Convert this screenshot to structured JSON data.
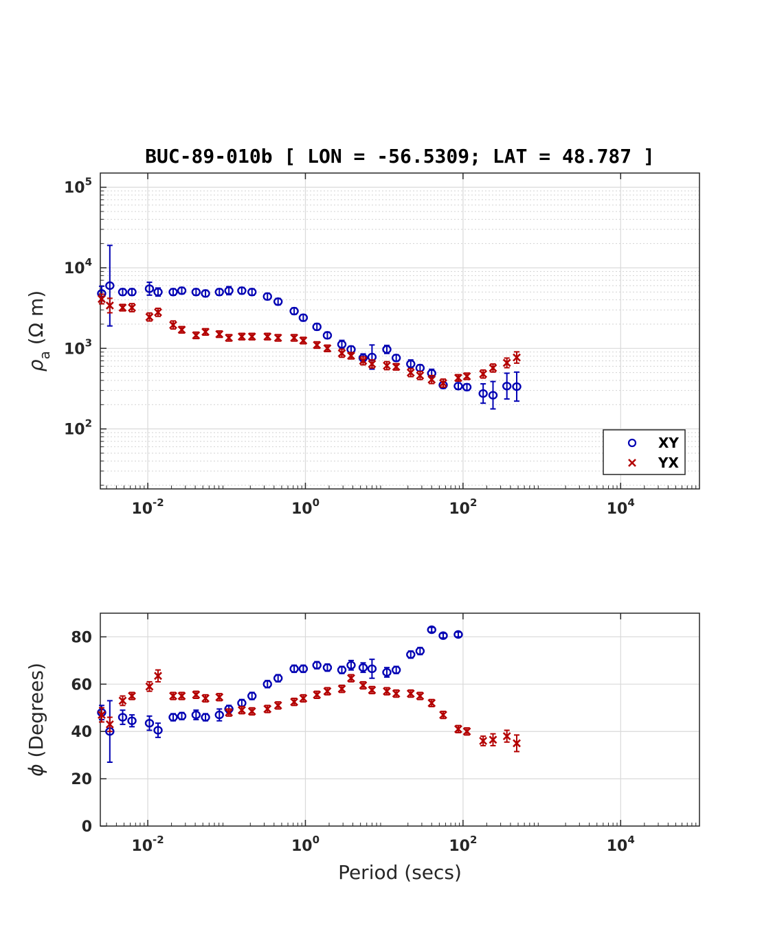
{
  "title": "BUC-89-010b [ LON = -56.5309; LAT = 48.787 ]",
  "colors": {
    "XY": "#0000b3",
    "YX": "#b30000"
  },
  "chart_data": [
    {
      "type": "scatter",
      "name": "apparent-resistivity",
      "xscale": "log",
      "yscale": "log",
      "xlim": [
        0.0025,
        100000
      ],
      "ylim": [
        18,
        150000
      ],
      "xticks": [
        {
          "base": "10",
          "exp": "-2",
          "v": 0.01
        },
        {
          "base": "10",
          "exp": "0",
          "v": 1
        },
        {
          "base": "10",
          "exp": "2",
          "v": 100
        },
        {
          "base": "10",
          "exp": "4",
          "v": 10000
        }
      ],
      "yticks": [
        {
          "base": "10",
          "exp": "2",
          "v": 100
        },
        {
          "base": "10",
          "exp": "3",
          "v": 1000
        },
        {
          "base": "10",
          "exp": "4",
          "v": 10000
        },
        {
          "base": "10",
          "exp": "5",
          "v": 100000
        }
      ],
      "ylabel_main": "ρ",
      "ylabel_sub": "a",
      "ylabel_unit": "(Ω m)",
      "grid": true,
      "legend": {
        "position": "bottom-right",
        "entries": [
          "XY",
          "YX"
        ]
      },
      "series": [
        {
          "name": "XY",
          "marker": "circle",
          "x": [
            0.0026,
            0.0033,
            0.0048,
            0.0063,
            0.0105,
            0.0135,
            0.021,
            0.027,
            0.041,
            0.054,
            0.081,
            0.107,
            0.156,
            0.21,
            0.33,
            0.45,
            0.72,
            0.94,
            1.4,
            1.9,
            2.9,
            3.8,
            5.4,
            7.0,
            10.8,
            14.2,
            21.7,
            28.5,
            40.0,
            56.0,
            87.0,
            112.0,
            180.0,
            240.0,
            360.0,
            480.0
          ],
          "y": [
            4800,
            6000,
            5000,
            5000,
            5500,
            5000,
            5000,
            5200,
            5000,
            4800,
            5000,
            5200,
            5200,
            5000,
            4400,
            3800,
            2900,
            2400,
            1850,
            1450,
            1120,
            970,
            760,
            780,
            970,
            760,
            640,
            570,
            490,
            350,
            340,
            330,
            275,
            262,
            340,
            335
          ],
          "err": [
            0.09,
            0.5,
            0.04,
            0.04,
            0.08,
            0.05,
            0.04,
            0.04,
            0.04,
            0.04,
            0.04,
            0.05,
            0.04,
            0.04,
            0.04,
            0.04,
            0.04,
            0.04,
            0.04,
            0.04,
            0.05,
            0.04,
            0.05,
            0.15,
            0.05,
            0.04,
            0.05,
            0.04,
            0.05,
            0.04,
            0.04,
            0.04,
            0.12,
            0.17,
            0.16,
            0.18
          ]
        },
        {
          "name": "YX",
          "marker": "x",
          "x": [
            0.0026,
            0.0033,
            0.0048,
            0.0063,
            0.0105,
            0.0135,
            0.021,
            0.027,
            0.041,
            0.054,
            0.081,
            0.107,
            0.156,
            0.21,
            0.33,
            0.45,
            0.72,
            0.94,
            1.4,
            1.9,
            2.9,
            3.8,
            5.4,
            7.0,
            10.8,
            14.2,
            21.7,
            28.5,
            40.0,
            56.0,
            87.0,
            112.0,
            180.0,
            240.0,
            360.0,
            480.0
          ],
          "y": [
            4100,
            3400,
            3200,
            3200,
            2450,
            2800,
            1950,
            1700,
            1450,
            1600,
            1500,
            1350,
            1400,
            1400,
            1400,
            1350,
            1350,
            1250,
            1100,
            1000,
            870,
            810,
            700,
            640,
            610,
            590,
            500,
            460,
            410,
            370,
            430,
            450,
            480,
            570,
            660,
            770
          ],
          "err": [
            0.06,
            0.09,
            0.04,
            0.05,
            0.05,
            0.05,
            0.05,
            0.04,
            0.04,
            0.04,
            0.04,
            0.04,
            0.04,
            0.04,
            0.04,
            0.04,
            0.04,
            0.04,
            0.04,
            0.04,
            0.05,
            0.04,
            0.05,
            0.05,
            0.05,
            0.04,
            0.05,
            0.05,
            0.05,
            0.05,
            0.04,
            0.04,
            0.05,
            0.05,
            0.06,
            0.07
          ]
        }
      ]
    },
    {
      "type": "scatter",
      "name": "phase",
      "xscale": "log",
      "yscale": "linear",
      "xlim": [
        0.0025,
        100000
      ],
      "ylim": [
        0,
        90
      ],
      "xticks": [
        {
          "base": "10",
          "exp": "-2",
          "v": 0.01
        },
        {
          "base": "10",
          "exp": "0",
          "v": 1
        },
        {
          "base": "10",
          "exp": "2",
          "v": 100
        },
        {
          "base": "10",
          "exp": "4",
          "v": 10000
        }
      ],
      "yticks": [
        {
          "label": "0",
          "v": 0
        },
        {
          "label": "20",
          "v": 20
        },
        {
          "label": "40",
          "v": 40
        },
        {
          "label": "60",
          "v": 60
        },
        {
          "label": "80",
          "v": 80
        }
      ],
      "ylabel_main": "ϕ",
      "ylabel_unit": "(Degrees)",
      "xlabel": "Period (secs)",
      "grid": true,
      "series": [
        {
          "name": "XY",
          "marker": "circle",
          "x": [
            0.0026,
            0.0033,
            0.0048,
            0.0063,
            0.0105,
            0.0135,
            0.021,
            0.027,
            0.041,
            0.054,
            0.081,
            0.107,
            0.156,
            0.21,
            0.33,
            0.45,
            0.72,
            0.94,
            1.4,
            1.9,
            2.9,
            3.8,
            5.4,
            7.0,
            10.8,
            14.2,
            21.7,
            28.5,
            40.0,
            56.0,
            87.0
          ],
          "y": [
            48,
            40,
            46,
            44.5,
            43.5,
            40.5,
            46,
            46.5,
            47,
            46,
            47,
            49.5,
            52,
            55,
            60,
            62.5,
            66.5,
            66.5,
            68,
            67,
            66,
            68,
            67,
            66.5,
            65,
            66,
            72.5,
            74,
            83,
            80.5,
            81
          ],
          "err": [
            3,
            13,
            3,
            2.5,
            3,
            3,
            1.5,
            1.5,
            2,
            1.5,
            2.5,
            1.5,
            1.5,
            1.5,
            1.5,
            1.5,
            1.5,
            1.5,
            1.5,
            1.5,
            1.5,
            2,
            2,
            4,
            2,
            1.5,
            1.5,
            1.5,
            1,
            1,
            1
          ]
        },
        {
          "name": "YX",
          "marker": "x",
          "x": [
            0.0026,
            0.0033,
            0.0048,
            0.0063,
            0.0105,
            0.0135,
            0.021,
            0.027,
            0.041,
            0.054,
            0.081,
            0.107,
            0.156,
            0.21,
            0.33,
            0.45,
            0.72,
            0.94,
            1.4,
            1.9,
            2.9,
            3.8,
            5.4,
            7.0,
            10.8,
            14.2,
            21.7,
            28.5,
            40.0,
            56.0,
            87.0,
            112.0,
            180.0,
            240.0,
            360.0,
            480.0
          ],
          "y": [
            47,
            43,
            53,
            55,
            59,
            63.5,
            55,
            55,
            55.5,
            54,
            54.5,
            48,
            49,
            48.5,
            49.5,
            51,
            52.5,
            54,
            55.5,
            57,
            58,
            62.5,
            59.5,
            57.5,
            57,
            56,
            56,
            55,
            52,
            47,
            41,
            40,
            36,
            36.5,
            38,
            35
          ],
          "err": [
            3,
            3,
            2,
            1.5,
            2,
            2.5,
            1.5,
            1.5,
            1.5,
            1.5,
            1.5,
            1.5,
            1.5,
            1.5,
            1.5,
            1.5,
            1.5,
            1.5,
            1.5,
            1.5,
            1.5,
            1.5,
            1.5,
            1.5,
            1.5,
            1.5,
            1.5,
            1.5,
            1.5,
            1.5,
            1.5,
            1.5,
            2,
            2.5,
            2.5,
            3.5
          ]
        }
      ]
    }
  ]
}
